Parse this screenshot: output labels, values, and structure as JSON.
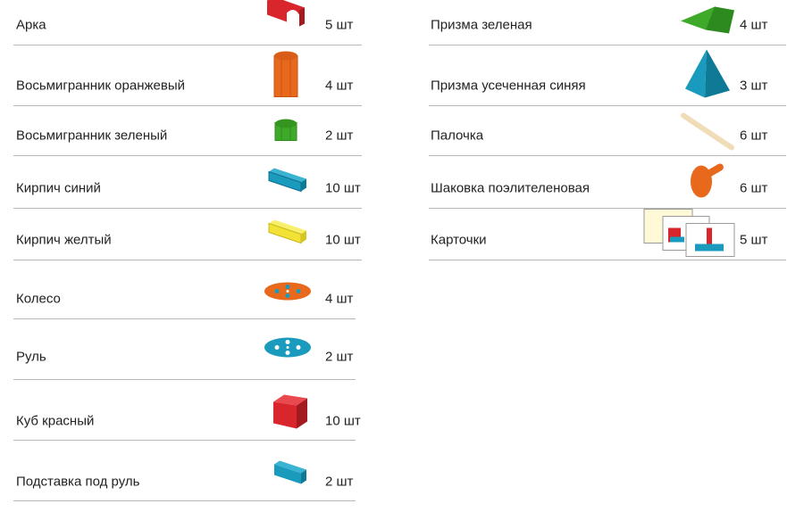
{
  "left": [
    {
      "name": "Арка",
      "qty": "5 шт",
      "icon": "red-arch-icon"
    },
    {
      "name": "Восьмигранник оранжевый",
      "qty": "4 шт",
      "icon": "orange-octagonal-prism-tall-icon"
    },
    {
      "name": "Восьмигранник зеленый",
      "qty": "2 шт",
      "icon": "green-octagonal-prism-icon"
    },
    {
      "name": "Кирпич синий",
      "qty": "10 шт",
      "icon": "blue-brick-icon"
    },
    {
      "name": "Кирпич желтый",
      "qty": "10 шт",
      "icon": "yellow-brick-icon"
    },
    {
      "name": "Колесо",
      "qty": "4 шт",
      "icon": "orange-wheel-icon"
    },
    {
      "name": "Руль",
      "qty": "2 шт",
      "icon": "blue-steering-wheel-icon"
    },
    {
      "name": "Куб красный",
      "qty": "10 шт",
      "icon": "red-cube-icon"
    },
    {
      "name": "Подставка под руль",
      "qty": "2 шт",
      "icon": "blue-stand-icon"
    }
  ],
  "right": [
    {
      "name": "Призма зеленая",
      "qty": "4 шт",
      "icon": "green-prism-icon"
    },
    {
      "name": "Призма усеченная синяя",
      "qty": "3 шт",
      "icon": "blue-pyramid-icon"
    },
    {
      "name": "Палочка",
      "qty": "6 шт",
      "icon": "wooden-stick-icon"
    },
    {
      "name": "Шаковка поэлителеновая",
      "qty": "6 шт",
      "icon": "orange-peg-icon"
    },
    {
      "name": "Карточки",
      "qty": "5 шт",
      "icon": "cards-icon"
    }
  ],
  "colors": {
    "red": "#d9262c",
    "orange": "#e8691c",
    "green": "#3faa2a",
    "blue": "#1a9bbd",
    "yellow": "#f2e236",
    "line": "#b8b8b8"
  }
}
